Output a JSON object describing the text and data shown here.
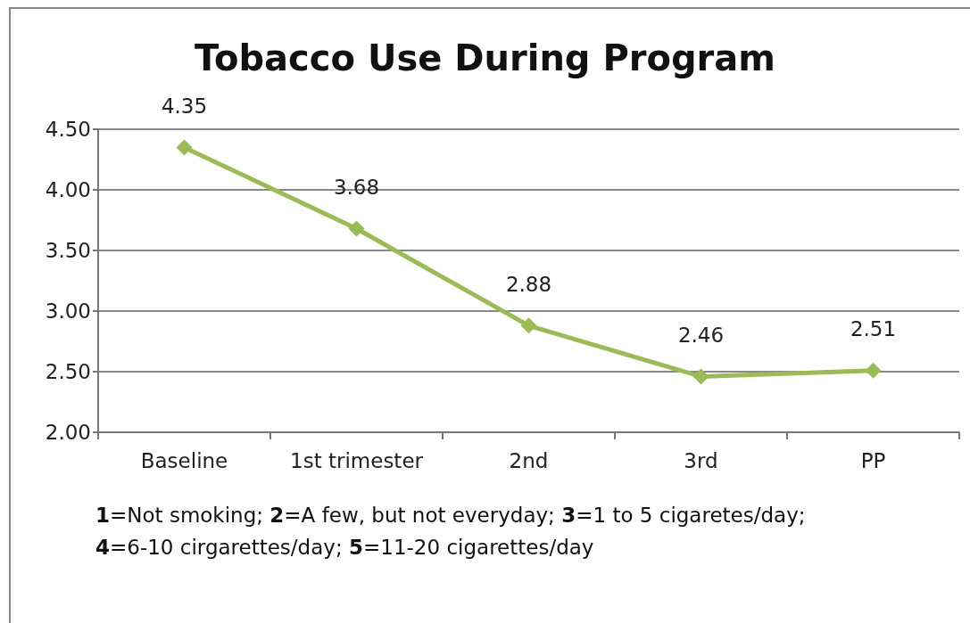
{
  "chart_data": {
    "type": "line",
    "title": "Tobacco Use During Program",
    "categories": [
      "Baseline",
      "1st trimester",
      "2nd",
      "3rd",
      "PP"
    ],
    "series": [
      {
        "color": "#9bbb59",
        "values": [
          4.35,
          3.68,
          2.88,
          2.46,
          2.51
        ]
      }
    ],
    "ylim": [
      2,
      4.5
    ],
    "yticks": [
      {
        "value": 2,
        "label": "2.00"
      },
      {
        "value": 2.5,
        "label": "2.50"
      },
      {
        "value": 3,
        "label": "3.00"
      },
      {
        "value": 3.5,
        "label": "3.50"
      },
      {
        "value": 4,
        "label": "4.00"
      },
      {
        "value": 4.5,
        "label": "4.50"
      }
    ],
    "grid": "y",
    "marker": "diamond",
    "line_style": "solid",
    "data_labels": true,
    "annotations": [
      "1=Not smoking; 2=A few, but not everyday; 3=1 to 5 cigaretes/day;",
      "4=6-10 cirgarettes/day; 5=11-20 cigarettes/day"
    ]
  }
}
